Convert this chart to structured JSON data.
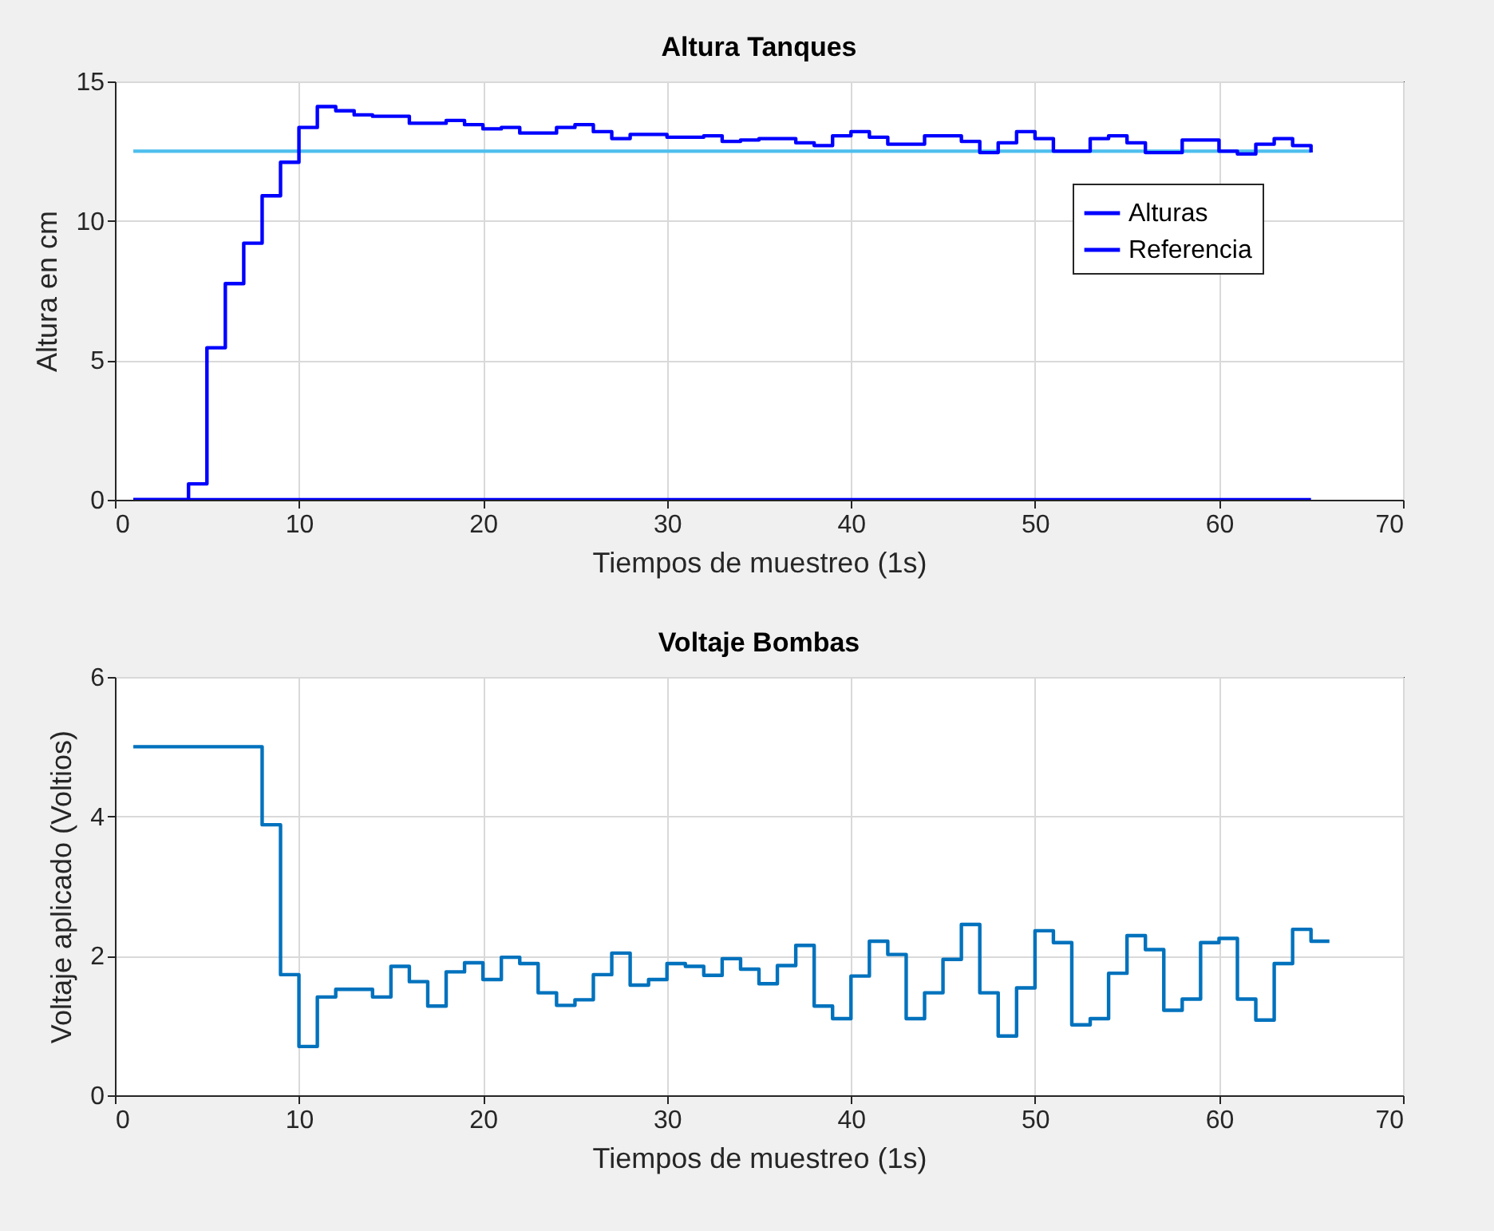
{
  "chart_data": [
    {
      "type": "step",
      "title": "Altura Tanques",
      "xlabel": "Tiempos de muestreo (1s)",
      "ylabel": "Altura en cm",
      "x": [
        1,
        2,
        3,
        4,
        5,
        6,
        7,
        8,
        9,
        10,
        11,
        12,
        13,
        14,
        15,
        16,
        17,
        18,
        19,
        20,
        21,
        22,
        23,
        24,
        25,
        26,
        27,
        28,
        29,
        30,
        31,
        32,
        33,
        34,
        35,
        36,
        37,
        38,
        39,
        40,
        41,
        42,
        43,
        44,
        45,
        46,
        47,
        48,
        49,
        50,
        51,
        52,
        53,
        54,
        55,
        56,
        57,
        58,
        59,
        60,
        61,
        62,
        63,
        64,
        65
      ],
      "xlim": [
        0,
        70
      ],
      "xticks": [
        0,
        10,
        20,
        30,
        40,
        50,
        60,
        70
      ],
      "ylim": [
        0,
        15
      ],
      "yticks": [
        0,
        5,
        10,
        15
      ],
      "grid": true,
      "legend": "top right",
      "series": [
        {
          "name": "Alturas",
          "color": "#0000ff",
          "values": [
            0,
            0,
            0,
            0.57,
            5.45,
            7.75,
            9.2,
            10.9,
            12.1,
            13.35,
            14.1,
            13.95,
            13.8,
            13.75,
            13.75,
            13.5,
            13.5,
            13.6,
            13.45,
            13.3,
            13.35,
            13.15,
            13.15,
            13.35,
            13.45,
            13.2,
            12.95,
            13.1,
            13.1,
            13.0,
            13.0,
            13.05,
            12.85,
            12.9,
            12.95,
            12.95,
            12.8,
            12.7,
            13.05,
            13.2,
            13.0,
            12.75,
            12.75,
            13.05,
            13.05,
            12.85,
            12.45,
            12.8,
            13.2,
            12.95,
            12.5,
            12.5,
            12.95,
            13.05,
            12.8,
            12.45,
            12.45,
            12.9,
            12.9,
            12.5,
            12.4,
            12.75,
            12.95,
            12.7,
            12.45
          ]
        },
        {
          "name": "Referencia",
          "color": "#0000ff",
          "values": [
            0,
            0,
            0,
            0,
            0,
            0,
            0,
            0,
            0,
            0,
            0,
            0,
            0,
            0,
            0,
            0,
            0,
            0,
            0,
            0,
            0,
            0,
            0,
            0,
            0,
            0,
            0,
            0,
            0,
            0,
            0,
            0,
            0,
            0,
            0,
            0,
            0,
            0,
            0,
            0,
            0,
            0,
            0,
            0,
            0,
            0,
            0,
            0,
            0,
            0,
            0,
            0,
            0,
            0,
            0,
            0,
            0,
            0,
            0,
            0,
            0,
            0,
            0,
            0,
            0
          ]
        },
        {
          "color": "#4dbeee",
          "values": [
            12.5,
            12.5,
            12.5,
            12.5,
            12.5,
            12.5,
            12.5,
            12.5,
            12.5,
            12.5,
            12.5,
            12.5,
            12.5,
            12.5,
            12.5,
            12.5,
            12.5,
            12.5,
            12.5,
            12.5,
            12.5,
            12.5,
            12.5,
            12.5,
            12.5,
            12.5,
            12.5,
            12.5,
            12.5,
            12.5,
            12.5,
            12.5,
            12.5,
            12.5,
            12.5,
            12.5,
            12.5,
            12.5,
            12.5,
            12.5,
            12.5,
            12.5,
            12.5,
            12.5,
            12.5,
            12.5,
            12.5,
            12.5,
            12.5,
            12.5,
            12.5,
            12.5,
            12.5,
            12.5,
            12.5,
            12.5,
            12.5,
            12.5,
            12.5,
            12.5,
            12.5,
            12.5,
            12.5,
            12.5,
            12.5
          ]
        }
      ]
    },
    {
      "type": "step",
      "title": "Voltaje Bombas",
      "xlabel": "Tiempos de muestreo (1s)",
      "ylabel": "Voltaje aplicado (Voltios)",
      "x": [
        1,
        2,
        3,
        4,
        5,
        6,
        7,
        8,
        9,
        10,
        11,
        12,
        13,
        14,
        15,
        16,
        17,
        18,
        19,
        20,
        21,
        22,
        23,
        24,
        25,
        26,
        27,
        28,
        29,
        30,
        31,
        32,
        33,
        34,
        35,
        36,
        37,
        38,
        39,
        40,
        41,
        42,
        43,
        44,
        45,
        46,
        47,
        48,
        49,
        50,
        51,
        52,
        53,
        54,
        55,
        56,
        57,
        58,
        59,
        60,
        61,
        62,
        63,
        64,
        65,
        66
      ],
      "xlim": [
        0,
        70
      ],
      "xticks": [
        0,
        10,
        20,
        30,
        40,
        50,
        60,
        70
      ],
      "ylim": [
        0,
        6
      ],
      "yticks": [
        0,
        2,
        4,
        6
      ],
      "grid": true,
      "series": [
        {
          "color": "#0072bd",
          "values": [
            5,
            5,
            5,
            5,
            5,
            5,
            5,
            3.88,
            1.73,
            0.7,
            1.41,
            1.52,
            1.52,
            1.41,
            1.85,
            1.63,
            1.28,
            1.77,
            1.9,
            1.66,
            1.98,
            1.89,
            1.47,
            1.29,
            1.37,
            1.73,
            2.04,
            1.58,
            1.66,
            1.89,
            1.85,
            1.72,
            1.96,
            1.81,
            1.6,
            1.86,
            2.15,
            1.28,
            1.1,
            1.71,
            2.21,
            2.02,
            1.1,
            1.47,
            1.95,
            2.45,
            1.47,
            0.85,
            1.54,
            2.36,
            2.19,
            1.01,
            1.1,
            1.75,
            2.29,
            2.09,
            1.22,
            1.38,
            2.19,
            2.25,
            1.38,
            1.08,
            1.89,
            2.38,
            2.21,
            2.21
          ]
        }
      ]
    }
  ]
}
